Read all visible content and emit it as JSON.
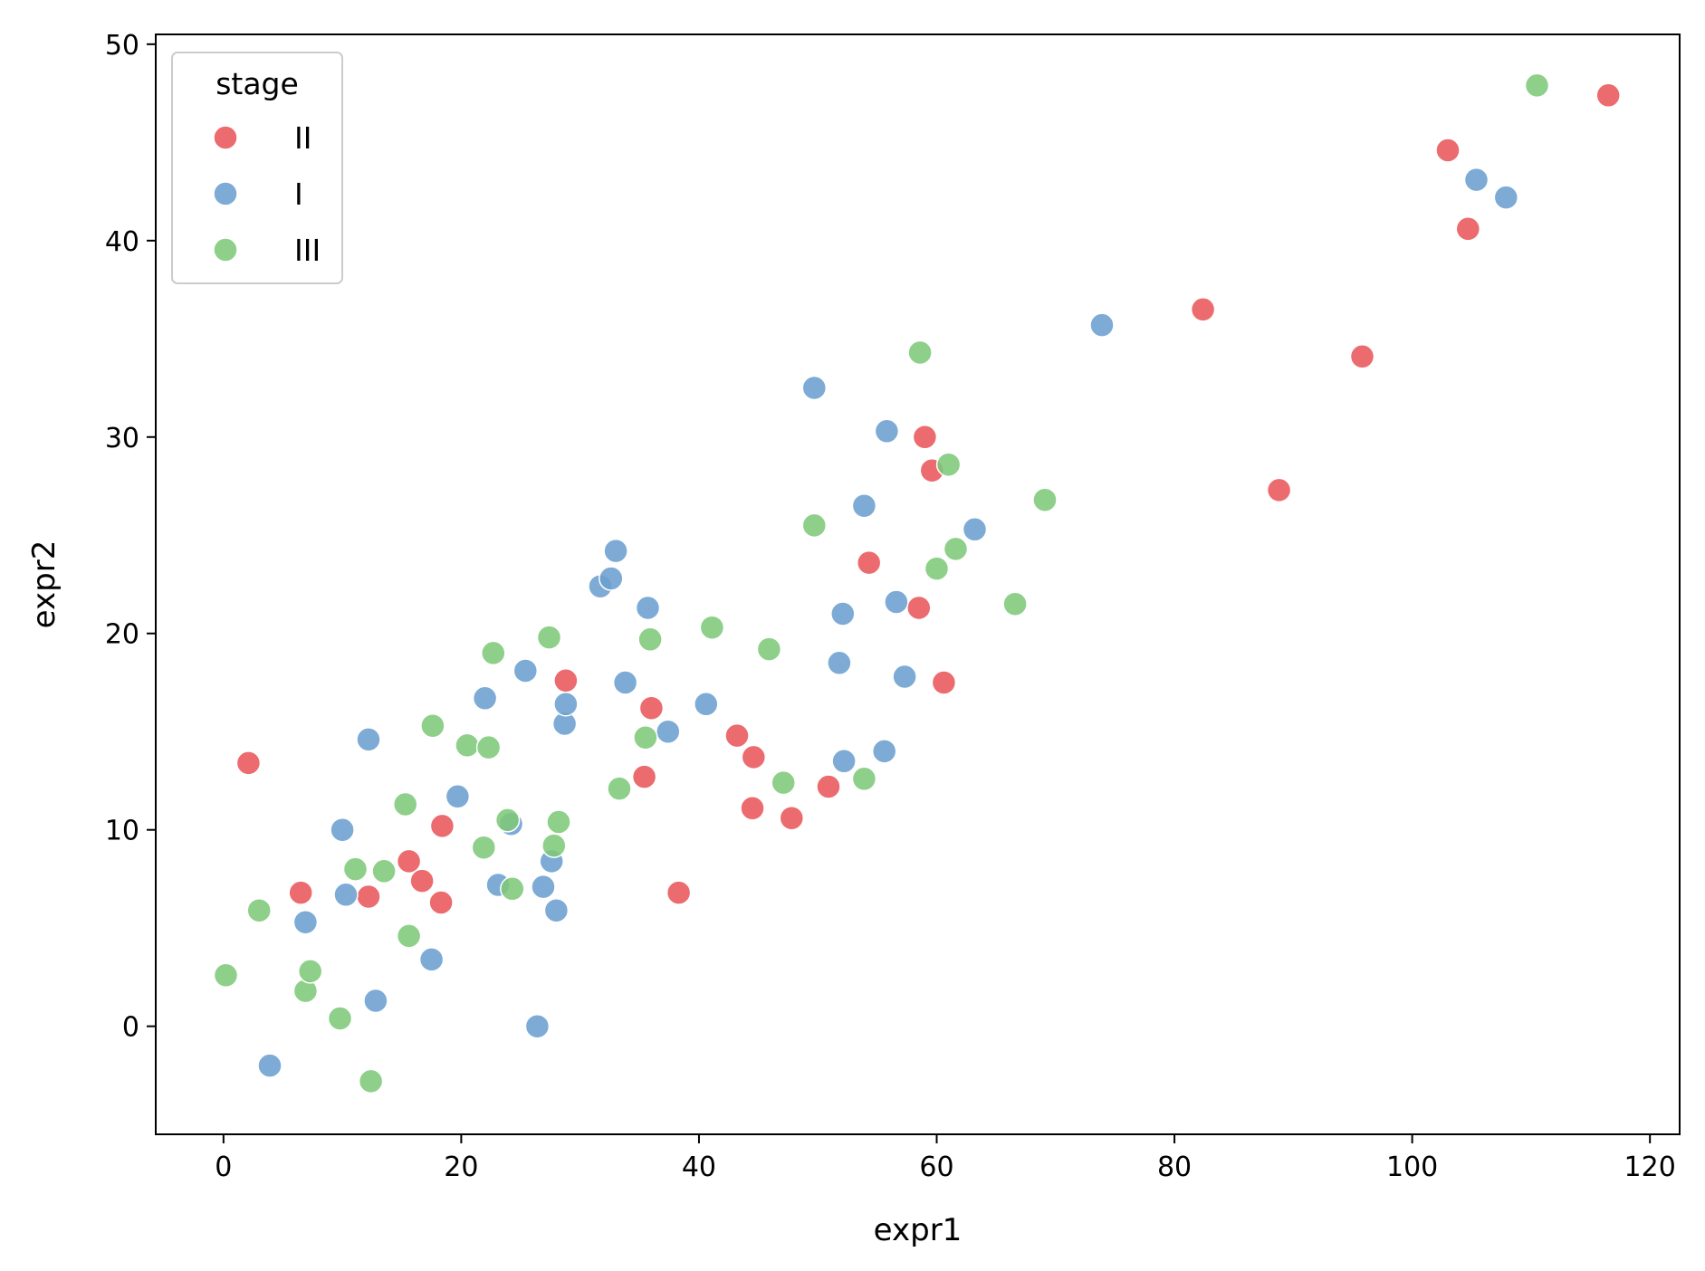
{
  "chart_data": {
    "type": "scatter",
    "xlabel": "expr1",
    "ylabel": "expr2",
    "xlim": [
      -5.7,
      122.5
    ],
    "ylim": [
      -5.5,
      50.5
    ],
    "xticks": [
      0,
      20,
      40,
      60,
      80,
      100,
      120
    ],
    "yticks": [
      0,
      10,
      20,
      30,
      40,
      50
    ],
    "grid": false,
    "legend": {
      "title": "stage",
      "placement": "top-left"
    },
    "series": [
      {
        "name": "II",
        "color": "#e8575b",
        "points": [
          [
            2.1,
            13.4
          ],
          [
            6.5,
            6.8
          ],
          [
            12.2,
            6.6
          ],
          [
            15.6,
            8.4
          ],
          [
            16.7,
            7.4
          ],
          [
            18.4,
            10.2
          ],
          [
            18.3,
            6.3
          ],
          [
            28.8,
            17.6
          ],
          [
            35.4,
            12.7
          ],
          [
            36.0,
            16.2
          ],
          [
            38.3,
            6.8
          ],
          [
            43.2,
            14.8
          ],
          [
            44.6,
            13.7
          ],
          [
            44.5,
            11.1
          ],
          [
            47.8,
            10.6
          ],
          [
            50.9,
            12.2
          ],
          [
            54.3,
            23.6
          ],
          [
            58.5,
            21.3
          ],
          [
            59.0,
            30.0
          ],
          [
            59.6,
            28.3
          ],
          [
            60.6,
            17.5
          ],
          [
            82.4,
            36.5
          ],
          [
            88.8,
            27.3
          ],
          [
            95.8,
            34.1
          ],
          [
            103.0,
            44.6
          ],
          [
            104.7,
            40.6
          ],
          [
            116.5,
            47.4
          ]
        ]
      },
      {
        "name": "I",
        "color": "#6b9fcf",
        "points": [
          [
            3.9,
            -2.0
          ],
          [
            6.9,
            5.3
          ],
          [
            10.0,
            10.0
          ],
          [
            10.3,
            6.7
          ],
          [
            12.2,
            14.6
          ],
          [
            12.8,
            1.3
          ],
          [
            17.5,
            3.4
          ],
          [
            19.7,
            11.7
          ],
          [
            22.0,
            16.7
          ],
          [
            23.1,
            7.2
          ],
          [
            24.2,
            10.3
          ],
          [
            25.4,
            18.1
          ],
          [
            26.4,
            0.0
          ],
          [
            26.9,
            7.1
          ],
          [
            27.6,
            8.4
          ],
          [
            28.0,
            5.9
          ],
          [
            28.7,
            15.4
          ],
          [
            28.8,
            16.4
          ],
          [
            31.7,
            22.4
          ],
          [
            32.6,
            22.8
          ],
          [
            33.0,
            24.2
          ],
          [
            33.8,
            17.5
          ],
          [
            35.7,
            21.3
          ],
          [
            37.4,
            15.0
          ],
          [
            40.6,
            16.4
          ],
          [
            49.7,
            32.5
          ],
          [
            51.8,
            18.5
          ],
          [
            52.1,
            21.0
          ],
          [
            52.2,
            13.5
          ],
          [
            53.9,
            26.5
          ],
          [
            55.6,
            14.0
          ],
          [
            55.8,
            30.3
          ],
          [
            56.6,
            21.6
          ],
          [
            57.3,
            17.8
          ],
          [
            63.2,
            25.3
          ],
          [
            73.9,
            35.7
          ],
          [
            105.4,
            43.1
          ],
          [
            107.9,
            42.2
          ]
        ]
      },
      {
        "name": "III",
        "color": "#7ec87a",
        "points": [
          [
            0.2,
            2.6
          ],
          [
            3.0,
            5.9
          ],
          [
            6.9,
            1.8
          ],
          [
            7.3,
            2.8
          ],
          [
            9.8,
            0.4
          ],
          [
            11.1,
            8.0
          ],
          [
            12.4,
            -2.8
          ],
          [
            13.5,
            7.9
          ],
          [
            15.3,
            11.3
          ],
          [
            15.6,
            4.6
          ],
          [
            17.6,
            15.3
          ],
          [
            20.5,
            14.3
          ],
          [
            21.9,
            9.1
          ],
          [
            22.3,
            14.2
          ],
          [
            22.7,
            19.0
          ],
          [
            23.9,
            10.5
          ],
          [
            24.3,
            7.0
          ],
          [
            27.4,
            19.8
          ],
          [
            27.8,
            9.2
          ],
          [
            28.2,
            10.4
          ],
          [
            33.3,
            12.1
          ],
          [
            35.5,
            14.7
          ],
          [
            35.9,
            19.7
          ],
          [
            41.1,
            20.3
          ],
          [
            45.9,
            19.2
          ],
          [
            47.1,
            12.4
          ],
          [
            49.7,
            25.5
          ],
          [
            53.9,
            12.6
          ],
          [
            58.6,
            34.3
          ],
          [
            60.0,
            23.3
          ],
          [
            61.0,
            28.6
          ],
          [
            61.6,
            24.3
          ],
          [
            66.6,
            21.5
          ],
          [
            69.1,
            26.8
          ],
          [
            110.5,
            47.9
          ]
        ]
      }
    ]
  }
}
